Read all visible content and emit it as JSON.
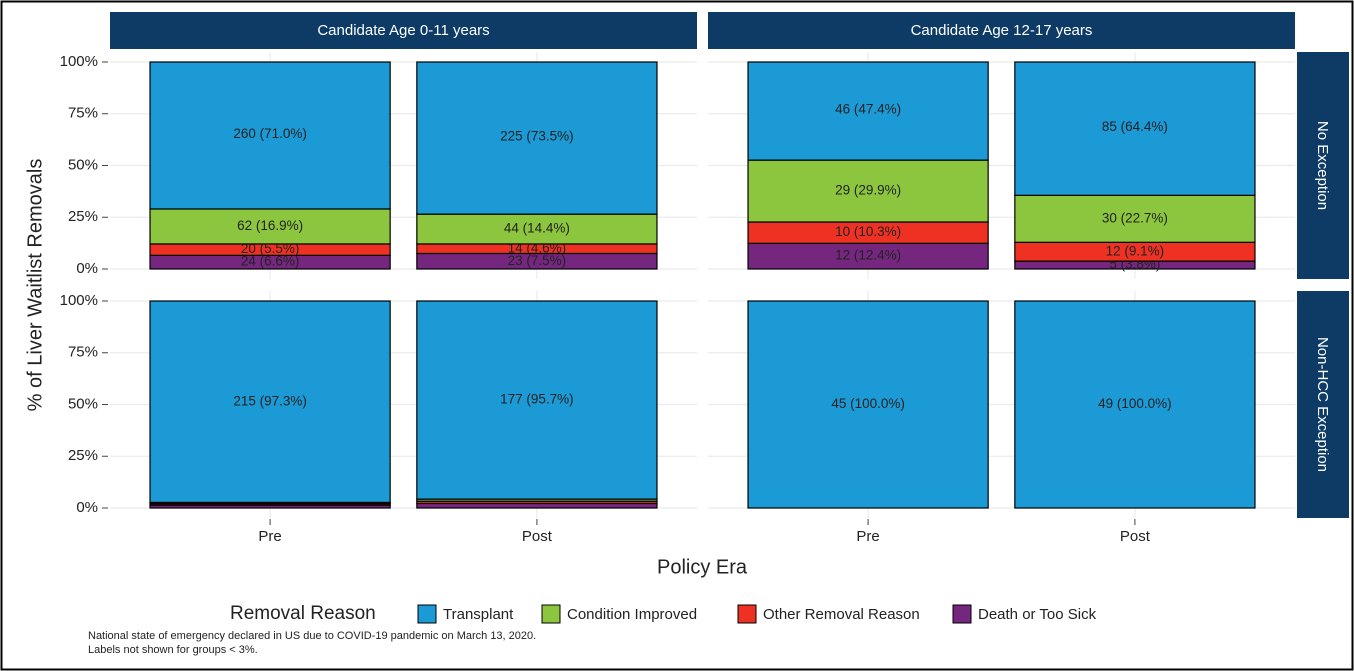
{
  "chart_data": {
    "type": "bar",
    "stacked": true,
    "ylabel": "% of Liver Waitlist Removals",
    "xlabel": "Policy Era",
    "legend_title": "Removal Reason",
    "caption": [
      "National state of emergency declared in US due to COVID-19 pandemic on March 13, 2020.",
      "Labels not shown for groups < 3%."
    ],
    "facet_cols": [
      "Candidate Age 0-11 years",
      "Candidate Age 12-17 years"
    ],
    "facet_rows": [
      "No Exception",
      "Non-HCC Exception"
    ],
    "strip_color": "#0d3b66",
    "categories": [
      "Pre",
      "Post"
    ],
    "ylim": [
      0,
      100
    ],
    "yticks": [
      {
        "value": 0,
        "label": "0%"
      },
      {
        "value": 25,
        "label": "25%"
      },
      {
        "value": 50,
        "label": "50%"
      },
      {
        "value": 75,
        "label": "75%"
      },
      {
        "value": 100,
        "label": "100%"
      }
    ],
    "grid": true,
    "legend": "bottom",
    "series": [
      {
        "name": "Death or Too Sick",
        "color": "#75267f"
      },
      {
        "name": "Other Removal Reason",
        "color": "#ef3124"
      },
      {
        "name": "Condition Improved",
        "color": "#8cc63e"
      },
      {
        "name": "Transplant",
        "color": "#1b9ad6"
      }
    ],
    "legend_order": [
      3,
      2,
      1,
      0
    ],
    "panels": [
      [
        [
          {
            "values": [
              6.6,
              7.5
            ],
            "value_labels": [
              "24 (6.6%)",
              "23 (7.5%)"
            ]
          },
          {
            "values": [
              5.5,
              4.6
            ],
            "value_labels": [
              "20 (5.5%)",
              "14 (4.6%)"
            ]
          },
          {
            "values": [
              16.9,
              14.4
            ],
            "value_labels": [
              "62 (16.9%)",
              "44 (14.4%)"
            ]
          },
          {
            "values": [
              71.0,
              73.5
            ],
            "value_labels": [
              "260 (71.0%)",
              "225 (73.5%)"
            ]
          }
        ],
        [
          {
            "values": [
              12.4,
              3.8
            ],
            "value_labels": [
              "12 (12.4%)",
              "5 (3.8%)"
            ]
          },
          {
            "values": [
              10.3,
              9.1
            ],
            "value_labels": [
              "10 (10.3%)",
              "12 (9.1%)"
            ]
          },
          {
            "values": [
              29.9,
              22.7
            ],
            "value_labels": [
              "29 (29.9%)",
              "30 (22.7%)"
            ]
          },
          {
            "values": [
              47.4,
              64.4
            ],
            "value_labels": [
              "46 (47.4%)",
              "85 (64.4%)"
            ]
          }
        ]
      ],
      [
        [
          {
            "values": [
              1.4,
              2.2
            ],
            "value_labels": [
              null,
              null
            ]
          },
          {
            "values": [
              0.7,
              1.1
            ],
            "value_labels": [
              null,
              null
            ]
          },
          {
            "values": [
              0.6,
              1.0
            ],
            "value_labels": [
              null,
              null
            ]
          },
          {
            "values": [
              97.3,
              95.7
            ],
            "value_labels": [
              "215 (97.3%)",
              "177 (95.7%)"
            ]
          }
        ],
        [
          {
            "values": [
              0,
              0
            ],
            "value_labels": [
              null,
              null
            ]
          },
          {
            "values": [
              0,
              0
            ],
            "value_labels": [
              null,
              null
            ]
          },
          {
            "values": [
              0,
              0
            ],
            "value_labels": [
              null,
              null
            ]
          },
          {
            "values": [
              100.0,
              100.0
            ],
            "value_labels": [
              "45 (100.0%)",
              "49 (100.0%)"
            ]
          }
        ]
      ]
    ]
  }
}
